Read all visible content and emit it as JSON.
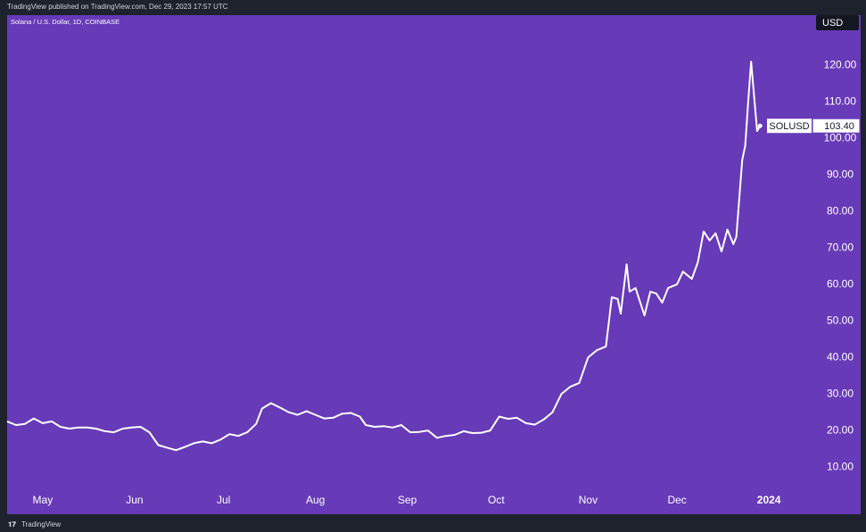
{
  "chart_data": {
    "type": "line",
    "header": "TradingView published on TradingView.com, Dec 29, 2023 17:57 UTC",
    "subtitle": "Solana / U.S. Dollar, 1D, COINBASE",
    "currency": "USD",
    "footer": "TradingView",
    "x": [
      "2023-04-19",
      "2023-04-22",
      "2023-04-25",
      "2023-04-28",
      "2023-05-01",
      "2023-05-04",
      "2023-05-07",
      "2023-05-10",
      "2023-05-13",
      "2023-05-16",
      "2023-05-19",
      "2023-05-22",
      "2023-05-25",
      "2023-05-28",
      "2023-05-31",
      "2023-06-03",
      "2023-06-06",
      "2023-06-09",
      "2023-06-12",
      "2023-06-15",
      "2023-06-18",
      "2023-06-21",
      "2023-06-24",
      "2023-06-27",
      "2023-06-30",
      "2023-07-03",
      "2023-07-06",
      "2023-07-09",
      "2023-07-12",
      "2023-07-14",
      "2023-07-17",
      "2023-07-20",
      "2023-07-23",
      "2023-07-26",
      "2023-07-29",
      "2023-08-01",
      "2023-08-04",
      "2023-08-07",
      "2023-08-10",
      "2023-08-13",
      "2023-08-16",
      "2023-08-18",
      "2023-08-21",
      "2023-08-24",
      "2023-08-27",
      "2023-08-30",
      "2023-09-02",
      "2023-09-05",
      "2023-09-08",
      "2023-09-11",
      "2023-09-14",
      "2023-09-17",
      "2023-09-20",
      "2023-09-23",
      "2023-09-26",
      "2023-09-29",
      "2023-10-02",
      "2023-10-05",
      "2023-10-08",
      "2023-10-11",
      "2023-10-14",
      "2023-10-17",
      "2023-10-20",
      "2023-10-23",
      "2023-10-26",
      "2023-10-29",
      "2023-11-01",
      "2023-11-04",
      "2023-11-07",
      "2023-11-09",
      "2023-11-11",
      "2023-11-12",
      "2023-11-14",
      "2023-11-15",
      "2023-11-17",
      "2023-11-20",
      "2023-11-22",
      "2023-11-24",
      "2023-11-26",
      "2023-11-28",
      "2023-12-01",
      "2023-12-03",
      "2023-12-06",
      "2023-12-08",
      "2023-12-10",
      "2023-12-12",
      "2023-12-14",
      "2023-12-16",
      "2023-12-18",
      "2023-12-20",
      "2023-12-21",
      "2023-12-23",
      "2023-12-24",
      "2023-12-25",
      "2023-12-26",
      "2023-12-28",
      "2023-12-29"
    ],
    "series": [
      {
        "name": "SOLUSD",
        "color": "#ffffff",
        "last_value_label": "103.40",
        "values": [
          22.5,
          21.5,
          21.8,
          23.3,
          22,
          22.5,
          21,
          20.5,
          20.8,
          20.8,
          20.5,
          19.8,
          19.5,
          20.5,
          20.8,
          21,
          19.5,
          16,
          15.3,
          14.6,
          15.5,
          16.5,
          17,
          16.5,
          17.5,
          19,
          18.5,
          19.5,
          21.8,
          26,
          27.5,
          26.3,
          25,
          24.3,
          25.3,
          24.3,
          23.3,
          23.5,
          24.6,
          24.8,
          23.8,
          21.5,
          21,
          21.2,
          20.8,
          21.5,
          19.5,
          19.6,
          20,
          18,
          18.5,
          18.8,
          19.8,
          19.3,
          19.4,
          20,
          23.8,
          23.2,
          23.5,
          22,
          21.6,
          23,
          25,
          30,
          32,
          33,
          40,
          42,
          43,
          56.5,
          56,
          52,
          65.5,
          58,
          59,
          51.5,
          58,
          57.5,
          55,
          59,
          60,
          63.5,
          61.5,
          66,
          74.5,
          72,
          74,
          69,
          75,
          71,
          73,
          94,
          98,
          110,
          121,
          102,
          103.4
        ]
      }
    ],
    "xlim": [
      "2023-04-19",
      "2024-01-16"
    ],
    "xticks": [
      {
        "value": "2023-05-01",
        "label": "May"
      },
      {
        "value": "2023-06-01",
        "label": "Jun"
      },
      {
        "value": "2023-07-01",
        "label": "Jul"
      },
      {
        "value": "2023-08-01",
        "label": "Aug"
      },
      {
        "value": "2023-09-01",
        "label": "Sep"
      },
      {
        "value": "2023-10-01",
        "label": "Oct"
      },
      {
        "value": "2023-11-01",
        "label": "Nov"
      },
      {
        "value": "2023-12-01",
        "label": "Dec"
      },
      {
        "value": "2024-01-01",
        "label": "2024"
      }
    ],
    "ylim": [
      4.9,
      133.7
    ],
    "yticks": [
      {
        "value": 10,
        "label": "10.00"
      },
      {
        "value": 20,
        "label": "20.00"
      },
      {
        "value": 30,
        "label": "30.00"
      },
      {
        "value": 40,
        "label": "40.00"
      },
      {
        "value": 50,
        "label": "50.00"
      },
      {
        "value": 60,
        "label": "60.00"
      },
      {
        "value": 70,
        "label": "70.00"
      },
      {
        "value": 80,
        "label": "80.00"
      },
      {
        "value": 90,
        "label": "90.00"
      },
      {
        "value": 100,
        "label": "100.00"
      },
      {
        "value": 110,
        "label": "110.00"
      },
      {
        "value": 120,
        "label": "120.00"
      }
    ],
    "background": "#673ab7"
  }
}
